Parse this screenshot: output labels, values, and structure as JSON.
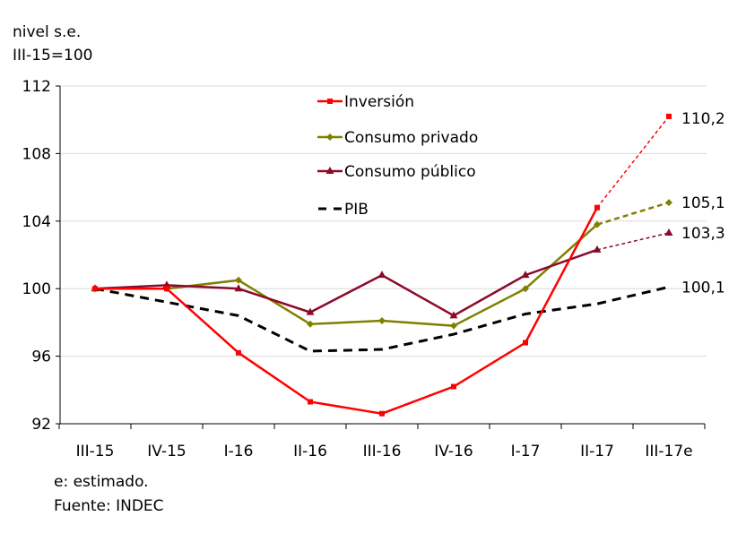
{
  "chart_data": {
    "type": "line",
    "ylabel_lines": [
      "nivel s.e.",
      "III-15=100"
    ],
    "categories": [
      "III-15",
      "IV-15",
      "I-16",
      "II-16",
      "III-16",
      "IV-16",
      "I-17",
      "II-17",
      "III-17e"
    ],
    "ylim": [
      92,
      112
    ],
    "yticks": [
      92,
      96,
      100,
      104,
      108,
      112
    ],
    "grid": true,
    "legend_position": "top-center",
    "series": [
      {
        "name": "Inversión",
        "color": "#ff0000",
        "marker": "square",
        "dash": "solid-then-dashed-last",
        "values": [
          100,
          100,
          96.2,
          93.3,
          92.6,
          94.2,
          96.8,
          104.8,
          110.2
        ],
        "end_label": "110,2"
      },
      {
        "name": "Consumo privado",
        "color": "#808000",
        "marker": "diamond",
        "dash": "solid-then-dashed-last",
        "values": [
          100,
          100,
          100.5,
          97.9,
          98.1,
          97.8,
          100,
          103.8,
          105.1
        ],
        "end_label": "105,1"
      },
      {
        "name": "Consumo público",
        "color": "#8b0a2a",
        "marker": "triangle",
        "dash": "solid-then-dashed-last",
        "values": [
          100,
          100.2,
          100,
          98.6,
          100.8,
          98.4,
          100.8,
          102.3,
          103.3
        ],
        "end_label": "103,3"
      },
      {
        "name": "PIB",
        "color": "#000000",
        "marker": "none",
        "dash": "dashed",
        "values": [
          100,
          99.2,
          98.4,
          96.3,
          96.4,
          97.3,
          98.5,
          99.1,
          100.1
        ],
        "end_label": "100,1"
      }
    ],
    "notes": [
      "e: estimado.",
      "Fuente: INDEC"
    ]
  }
}
